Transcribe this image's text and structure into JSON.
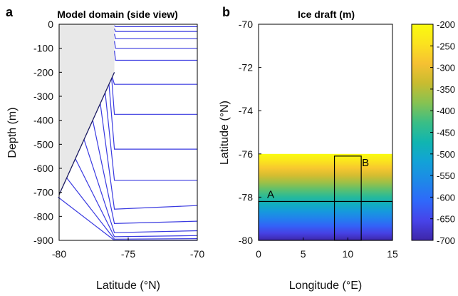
{
  "chart_data": [
    {
      "panel": "a",
      "type": "line",
      "title": "Model domain (side view)",
      "xlabel": "Latitude (°N)",
      "ylabel": "Depth (m)",
      "xlim": [
        -80,
        -70
      ],
      "ylim": [
        -900,
        0
      ],
      "xticks": [
        "-80",
        "-75",
        "-70"
      ],
      "yticks": [
        "0",
        "-100",
        "-200",
        "-300",
        "-400",
        "-500",
        "-600",
        "-700",
        "-800",
        "-900"
      ],
      "ice_shelf": {
        "color": "#e8e8e8",
        "outline": [
          [
            -80,
            0
          ],
          [
            -76,
            0
          ],
          [
            -76,
            -200
          ],
          [
            -80,
            -710
          ]
        ]
      },
      "layer_color": "#3a3ae0",
      "layers": [
        {
          "far_depth": -10,
          "front_depth": -10,
          "base_depth": -5
        },
        {
          "far_depth": -30,
          "front_depth": -30,
          "base_depth": -18
        },
        {
          "far_depth": -60,
          "front_depth": -60,
          "base_depth": -40
        },
        {
          "far_depth": -100,
          "front_depth": -100,
          "base_depth": -70
        },
        {
          "far_depth": -150,
          "front_depth": -150,
          "base_depth": -110
        },
        {
          "far_depth": -250,
          "front_depth": -250,
          "base_depth": -220
        },
        {
          "far_depth": -375,
          "front_depth": -375,
          "base_depth": -225
        },
        {
          "far_depth": -520,
          "front_depth": -520,
          "base_depth": -250
        },
        {
          "far_depth": -650,
          "front_depth": -650,
          "base_depth": -285
        },
        {
          "far_depth": -755,
          "front_depth": -770,
          "base_depth": -330
        },
        {
          "far_depth": -820,
          "front_depth": -830,
          "base_depth": -400
        },
        {
          "far_depth": -860,
          "front_depth": -868,
          "base_depth": -480
        },
        {
          "far_depth": -880,
          "front_depth": -885,
          "base_depth": -560
        },
        {
          "far_depth": -893,
          "front_depth": -895,
          "base_depth": -640
        },
        {
          "far_depth": -900,
          "front_depth": -900,
          "base_depth": -720
        }
      ]
    },
    {
      "panel": "b",
      "type": "heatmap",
      "title": "Ice draft (m)",
      "xlabel": "Longitude (°E)",
      "ylabel": "Latitude (°N)",
      "xlim": [
        0,
        15
      ],
      "ylim": [
        -80,
        -70
      ],
      "xticks": [
        "0",
        "5",
        "10",
        "15"
      ],
      "yticks": [
        "-70",
        "-72",
        "-74",
        "-76",
        "-78",
        "-80"
      ],
      "field": {
        "lon_range": [
          0,
          15
        ],
        "lat_range": [
          -80,
          -76
        ],
        "draft_at_lat": [
          {
            "lat": -76,
            "draft": -200
          },
          {
            "lat": -80,
            "draft": -700
          }
        ]
      },
      "regions": [
        {
          "label": "A",
          "lon": [
            0,
            15
          ],
          "lat": [
            -80,
            -78.2
          ]
        },
        {
          "label": "B",
          "lon": [
            8.5,
            11.5
          ],
          "lat": [
            -80,
            -76.1
          ]
        }
      ],
      "colorbar": {
        "range": [
          -700,
          -200
        ],
        "ticks": [
          "-200",
          "-250",
          "-300",
          "-350",
          "-400",
          "-450",
          "-500",
          "-550",
          "-600",
          "-650",
          "-700"
        ],
        "colors": [
          "#3e26a8",
          "#4743e9",
          "#2f68fa",
          "#1e88e8",
          "#12a2d7",
          "#11b5b0",
          "#3abe86",
          "#86c252",
          "#c8bc30",
          "#f6c132",
          "#fbe21f",
          "#f9fb0e"
        ]
      }
    }
  ],
  "labels": {
    "panel_a_letter": "a",
    "panel_b_letter": "b"
  }
}
